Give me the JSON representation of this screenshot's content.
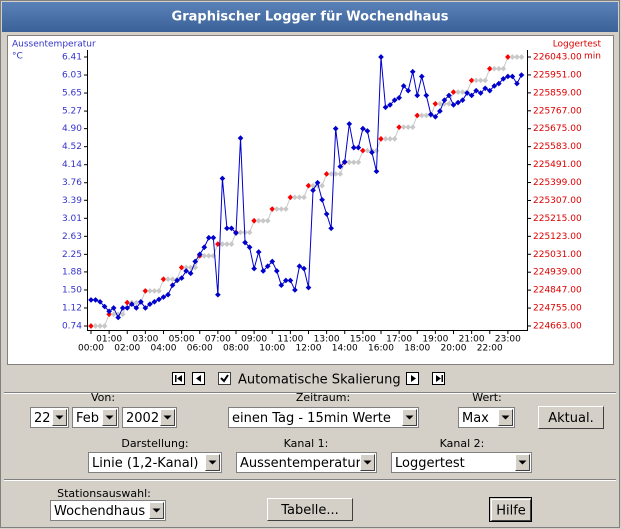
{
  "header": {
    "title": "Graphischer Logger für Wochendhaus"
  },
  "chart_data": {
    "type": "line",
    "y_label": "Aussentemperatur",
    "y_unit": "°C",
    "y2_label": "Loggertest",
    "y2_unit": "min",
    "x": [
      0,
      0.25,
      0.5,
      0.75,
      1,
      1.25,
      1.5,
      1.75,
      2,
      2.25,
      2.5,
      2.75,
      3,
      3.25,
      3.5,
      3.75,
      4,
      4.25,
      4.5,
      4.75,
      5,
      5.25,
      5.5,
      5.75,
      6,
      6.25,
      6.5,
      6.75,
      7,
      7.25,
      7.5,
      7.75,
      8,
      8.25,
      8.5,
      8.75,
      9,
      9.25,
      9.5,
      9.75,
      10,
      10.25,
      10.5,
      10.75,
      11,
      11.25,
      11.5,
      11.75,
      12,
      12.25,
      12.5,
      12.75,
      13,
      13.25,
      13.5,
      13.75,
      14,
      14.25,
      14.5,
      14.75,
      15,
      15.25,
      15.5,
      15.75,
      16,
      16.25,
      16.5,
      16.75,
      17,
      17.25,
      17.5,
      17.75,
      18,
      18.25,
      18.5,
      18.75,
      19,
      19.25,
      19.5,
      19.75,
      20,
      20.25,
      20.5,
      20.75,
      21,
      21.25,
      21.5,
      21.75,
      22,
      22.25,
      22.5,
      22.75,
      23,
      23.25,
      23.5,
      23.75
    ],
    "xlim": [
      0,
      24
    ],
    "xticks": [
      {
        "value": 0,
        "label": "00:00"
      },
      {
        "value": 1,
        "label": "01:00"
      },
      {
        "value": 2,
        "label": "02:00"
      },
      {
        "value": 3,
        "label": "03:00"
      },
      {
        "value": 4,
        "label": "04:00"
      },
      {
        "value": 5,
        "label": "05:00"
      },
      {
        "value": 6,
        "label": "06:00"
      },
      {
        "value": 7,
        "label": "07:00"
      },
      {
        "value": 8,
        "label": "08:00"
      },
      {
        "value": 9,
        "label": "09:00"
      },
      {
        "value": 10,
        "label": "10:00"
      },
      {
        "value": 11,
        "label": "11:00"
      },
      {
        "value": 12,
        "label": "12:00"
      },
      {
        "value": 13,
        "label": "13:00"
      },
      {
        "value": 14,
        "label": "14:00"
      },
      {
        "value": 15,
        "label": "15:00"
      },
      {
        "value": 16,
        "label": "16:00"
      },
      {
        "value": 17,
        "label": "17:00"
      },
      {
        "value": 18,
        "label": "18:00"
      },
      {
        "value": 19,
        "label": "19:00"
      },
      {
        "value": 20,
        "label": "20:00"
      },
      {
        "value": 21,
        "label": "21:00"
      },
      {
        "value": 22,
        "label": "22:00"
      },
      {
        "value": 23,
        "label": "23:00"
      }
    ],
    "ylim": [
      0.74,
      6.41
    ],
    "yticks": [
      0.74,
      1.12,
      {
        "value": 1.5,
        "label": "1.50"
      },
      1.88,
      2.25,
      2.63,
      3.01,
      3.39,
      3.76,
      4.14,
      4.52,
      {
        "value": 4.9,
        "label": "4.90"
      },
      5.27,
      5.65,
      6.03,
      6.41
    ],
    "y2lim": [
      224663,
      226043
    ],
    "y2ticks": [
      {
        "value": 224663,
        "label": "224663.00"
      },
      {
        "value": 224755,
        "label": "224755.00"
      },
      {
        "value": 224847,
        "label": "224847.00"
      },
      {
        "value": 224939,
        "label": "224939.00"
      },
      {
        "value": 225031,
        "label": "225031.00"
      },
      {
        "value": 225123,
        "label": "225123.00"
      },
      {
        "value": 225215,
        "label": "225215.00"
      },
      {
        "value": 225307,
        "label": "225307.00"
      },
      {
        "value": 225399,
        "label": "225399.00"
      },
      {
        "value": 225491,
        "label": "225491.00"
      },
      {
        "value": 225583,
        "label": "225583.00"
      },
      {
        "value": 225675,
        "label": "225675.00"
      },
      {
        "value": 225767,
        "label": "225767.00"
      },
      {
        "value": 225859,
        "label": "225859.00"
      },
      {
        "value": 225951,
        "label": "225951.00"
      },
      {
        "value": 226043,
        "label": "226043.00"
      }
    ],
    "series": [
      {
        "color": "#0000cc",
        "label_color": "#3333cc",
        "values": [
          1.29,
          1.29,
          1.25,
          1.15,
          1.05,
          1.12,
          0.92,
          1.12,
          1.12,
          1.2,
          1.12,
          1.25,
          1.12,
          1.2,
          1.25,
          1.3,
          1.35,
          1.4,
          1.6,
          1.7,
          1.75,
          1.9,
          1.85,
          2.1,
          2.25,
          2.4,
          2.6,
          2.6,
          1.4,
          3.85,
          2.8,
          2.8,
          2.7,
          4.7,
          2.5,
          2.4,
          1.95,
          2.3,
          1.9,
          2.0,
          2.1,
          1.9,
          1.6,
          1.7,
          1.7,
          1.5,
          2.0,
          1.95,
          1.55,
          3.6,
          3.76,
          3.4,
          3.1,
          2.8,
          4.9,
          4.1,
          4.2,
          5.0,
          4.5,
          4.5,
          4.9,
          4.85,
          4.4,
          4.0,
          6.41,
          5.35,
          5.4,
          5.5,
          5.55,
          5.8,
          5.7,
          6.1,
          5.6,
          6.0,
          5.6,
          5.2,
          5.15,
          5.27,
          5.5,
          5.6,
          5.4,
          5.45,
          5.5,
          5.65,
          5.6,
          5.7,
          5.65,
          5.75,
          5.7,
          5.8,
          5.85,
          5.95,
          6.0,
          6.0,
          5.85,
          6.03
        ]
      },
      {
        "axis": "y2",
        "color": "#c8c8c8",
        "step_color": "#ff0000",
        "label_color": "#dd0000",
        "values": [
          224663,
          224663,
          224663,
          224663,
          224723,
          224723,
          224723,
          224723,
          224783,
          224783,
          224783,
          224783,
          224843,
          224843,
          224843,
          224843,
          224903,
          224903,
          224903,
          224903,
          224963,
          224963,
          224963,
          224963,
          225023,
          225023,
          225023,
          225023,
          225083,
          225083,
          225083,
          225083,
          225143,
          225143,
          225143,
          225143,
          225203,
          225203,
          225203,
          225203,
          225263,
          225263,
          225263,
          225263,
          225323,
          225323,
          225323,
          225323,
          225383,
          225383,
          225383,
          225383,
          225443,
          225443,
          225443,
          225443,
          225503,
          225503,
          225503,
          225503,
          225563,
          225563,
          225563,
          225563,
          225623,
          225623,
          225623,
          225623,
          225683,
          225683,
          225683,
          225683,
          225743,
          225743,
          225743,
          225743,
          225803,
          225803,
          225803,
          225803,
          225863,
          225863,
          225863,
          225863,
          225923,
          225923,
          225923,
          225923,
          225983,
          225983,
          225983,
          225983,
          226043,
          226043,
          226043,
          226043
        ]
      }
    ]
  },
  "controls": {
    "checkbox_label": "Automatische Skalierung",
    "checked": true,
    "von": {
      "label": "Von:",
      "day": "22",
      "month": "Feb",
      "year": "2002"
    },
    "zeitraum": {
      "label": "Zeitraum:",
      "value": "einen Tag - 15min Werte"
    },
    "wert": {
      "label": "Wert:",
      "value": "Max"
    },
    "aktual": "Aktual.",
    "darstellung": {
      "label": "Darstellung:",
      "value": "Linie (1,2-Kanal)"
    },
    "kanal1": {
      "label": "Kanal 1:",
      "value": "Aussentemperatur"
    },
    "kanal2": {
      "label": "Kanal 2:",
      "value": "Loggertest"
    },
    "station": {
      "label": "Stationsauswahl:",
      "value": "Wochendhaus"
    },
    "tabelle": "Tabelle...",
    "hilfe": "Hilfe"
  }
}
